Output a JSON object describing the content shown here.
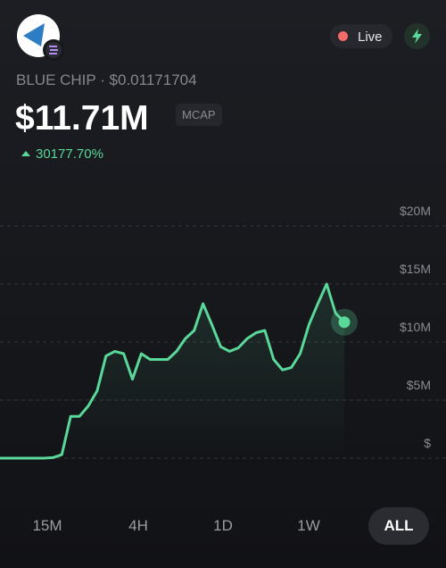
{
  "header": {
    "token": "BLUE CHIP · $0.01171704",
    "market_cap": "$11.71M",
    "badge": "MCAP",
    "change": "30177.70%",
    "live": "Live"
  },
  "chart_data": {
    "type": "line",
    "color": "#5ad89a",
    "grid": true,
    "values": [
      0,
      0,
      0,
      0,
      0,
      0,
      0.05,
      0.3,
      3.6,
      3.6,
      4.5,
      5.8,
      8.8,
      9.2,
      9.0,
      6.8,
      9.0,
      8.5,
      8.5,
      8.5,
      9.2,
      10.3,
      11,
      13.3,
      11.5,
      9.6,
      9.2,
      9.5,
      10.3,
      10.8,
      11,
      8.5,
      7.6,
      7.8,
      9.0,
      11.5,
      13.3,
      15,
      12.5,
      11.71
    ],
    "ylim": [
      0,
      20
    ],
    "yticks": [
      {
        "value": 0,
        "label": "$"
      },
      {
        "value": 5,
        "label": "$5M"
      },
      {
        "value": 10,
        "label": "$10M"
      },
      {
        "value": 15,
        "label": "$15M"
      },
      {
        "value": 20,
        "label": "$20M"
      }
    ]
  },
  "timeframes": [
    "15M",
    "4H",
    "1D",
    "1W",
    "ALL"
  ],
  "selected_timeframe": 4
}
